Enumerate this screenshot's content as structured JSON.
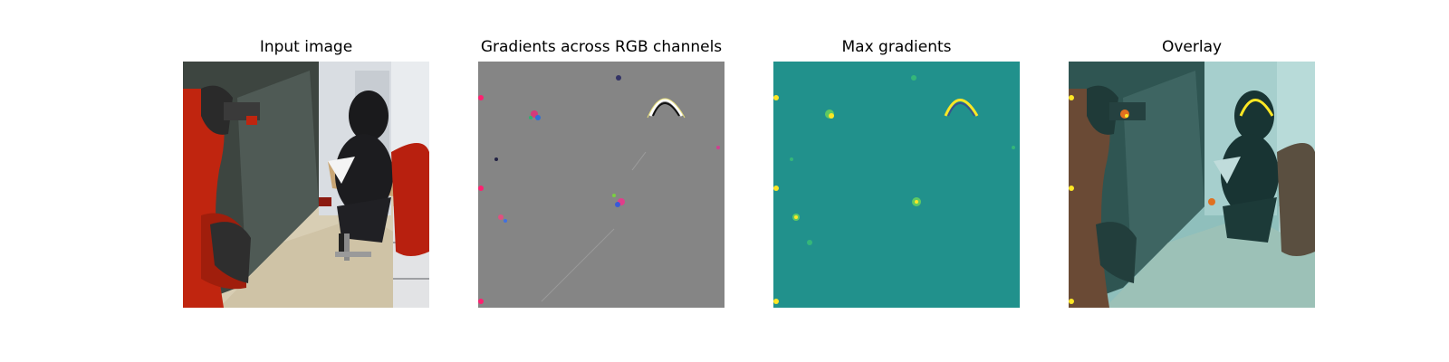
{
  "panels": [
    {
      "title": "Input image",
      "image": "robot-photo"
    },
    {
      "title": "Gradients across RGB channels",
      "image": "rgb-gradient-map"
    },
    {
      "title": "Max gradients",
      "image": "max-gradient-heatmap"
    },
    {
      "title": "Overlay",
      "image": "overlay-photo"
    }
  ],
  "colors": {
    "gradient_gray": "#858585",
    "heatmap_teal": "#21918c",
    "heatmap_yellow": "#fde725",
    "robot_red": "#c0250f"
  }
}
